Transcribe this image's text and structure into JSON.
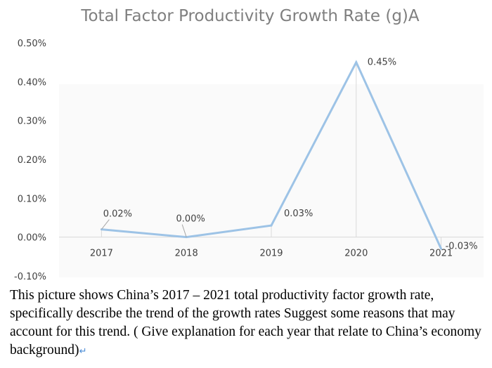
{
  "chart_data": {
    "type": "line",
    "title": "Total Factor Productivity Growth Rate (g)A",
    "xlabel": "",
    "ylabel": "",
    "categories": [
      "2017",
      "2018",
      "2019",
      "2020",
      "2021"
    ],
    "series": [
      {
        "values": [
          0.02,
          0.0,
          0.03,
          0.45,
          -0.03
        ],
        "data_labels": [
          "0.02%",
          "0.00%",
          "0.03%",
          "0.45%",
          "-0.03%"
        ],
        "color": "#9dc3e6"
      }
    ],
    "y_ticks": [
      -0.1,
      0.0,
      0.1,
      0.2,
      0.3,
      0.4,
      0.5
    ],
    "y_tick_labels": [
      "-0.10%",
      "0.00%",
      "0.10%",
      "0.20%",
      "0.30%",
      "0.40%",
      "0.50%"
    ],
    "ylim": [
      -0.1,
      0.5
    ],
    "grid": "vertical drop lines at each category",
    "legend": "none"
  },
  "question": {
    "text": "This picture shows China’s 2017 – 2021 total productivity factor growth rate, specifically describe the trend of the growth rates Suggest some reasons that may account for this trend.    ( Give explanation for each year that relate to China’s economy background)",
    "mark": "↵"
  }
}
